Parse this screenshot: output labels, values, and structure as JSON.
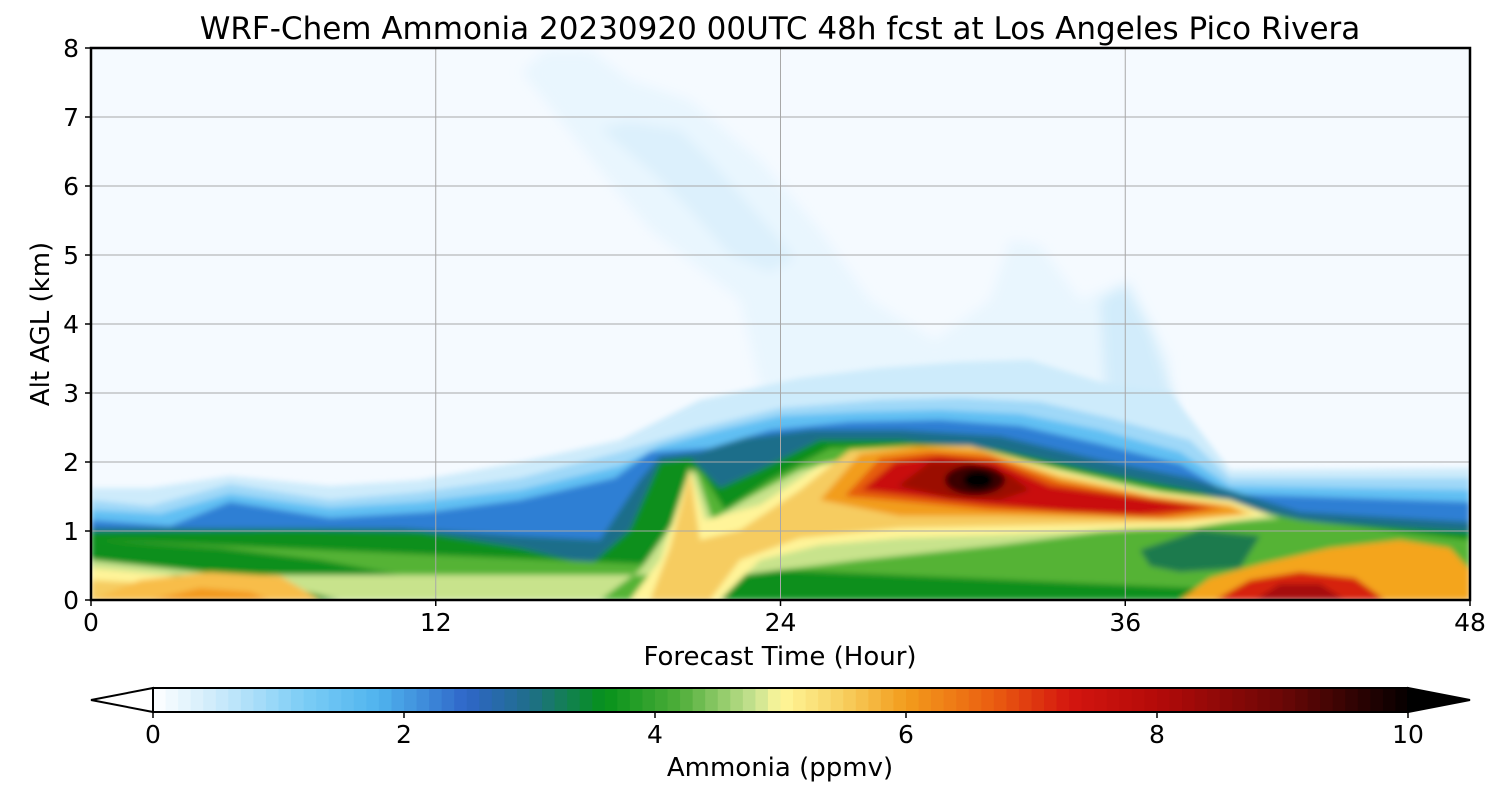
{
  "chart_data": {
    "type": "heatmap",
    "title": "WRF-Chem Ammonia  20230920 00UTC 48h fcst at Los Angeles Pico Rivera",
    "xlabel": "Forecast Time (Hour)",
    "ylabel": "Alt AGL (km)",
    "xlim": [
      0,
      48
    ],
    "ylim": [
      0,
      8
    ],
    "xticks": [
      "0",
      "12",
      "24",
      "36",
      "48"
    ],
    "yticks": [
      "0",
      "1",
      "2",
      "3",
      "4",
      "5",
      "6",
      "7",
      "8"
    ],
    "grid": true,
    "colorbar": {
      "label": "Ammonia  (ppmv)",
      "min": 0,
      "max": 10,
      "ticks": [
        "0",
        "2",
        "4",
        "6",
        "8",
        "10"
      ],
      "extend": "both"
    },
    "features": [
      {
        "t": 31,
        "z": 1.75,
        "value": 10.0
      },
      {
        "t": 29,
        "z": 1.7,
        "value": 8.0
      },
      {
        "t": 36,
        "z": 1.4,
        "value": 7.5
      },
      {
        "t": 42,
        "z": 0.15,
        "value": 8.0
      },
      {
        "t": 45,
        "z": 0.3,
        "value": 6.0
      },
      {
        "t": 21,
        "z": 1.0,
        "value": 5.3
      },
      {
        "t": 4,
        "z": 0.25,
        "value": 5.8
      },
      {
        "t": 14,
        "z": 0.7,
        "value": 3.6
      },
      {
        "t": 38,
        "z": 0.65,
        "value": 3.5
      },
      {
        "t": 2,
        "z": 0.75,
        "value": 4.6
      }
    ]
  }
}
